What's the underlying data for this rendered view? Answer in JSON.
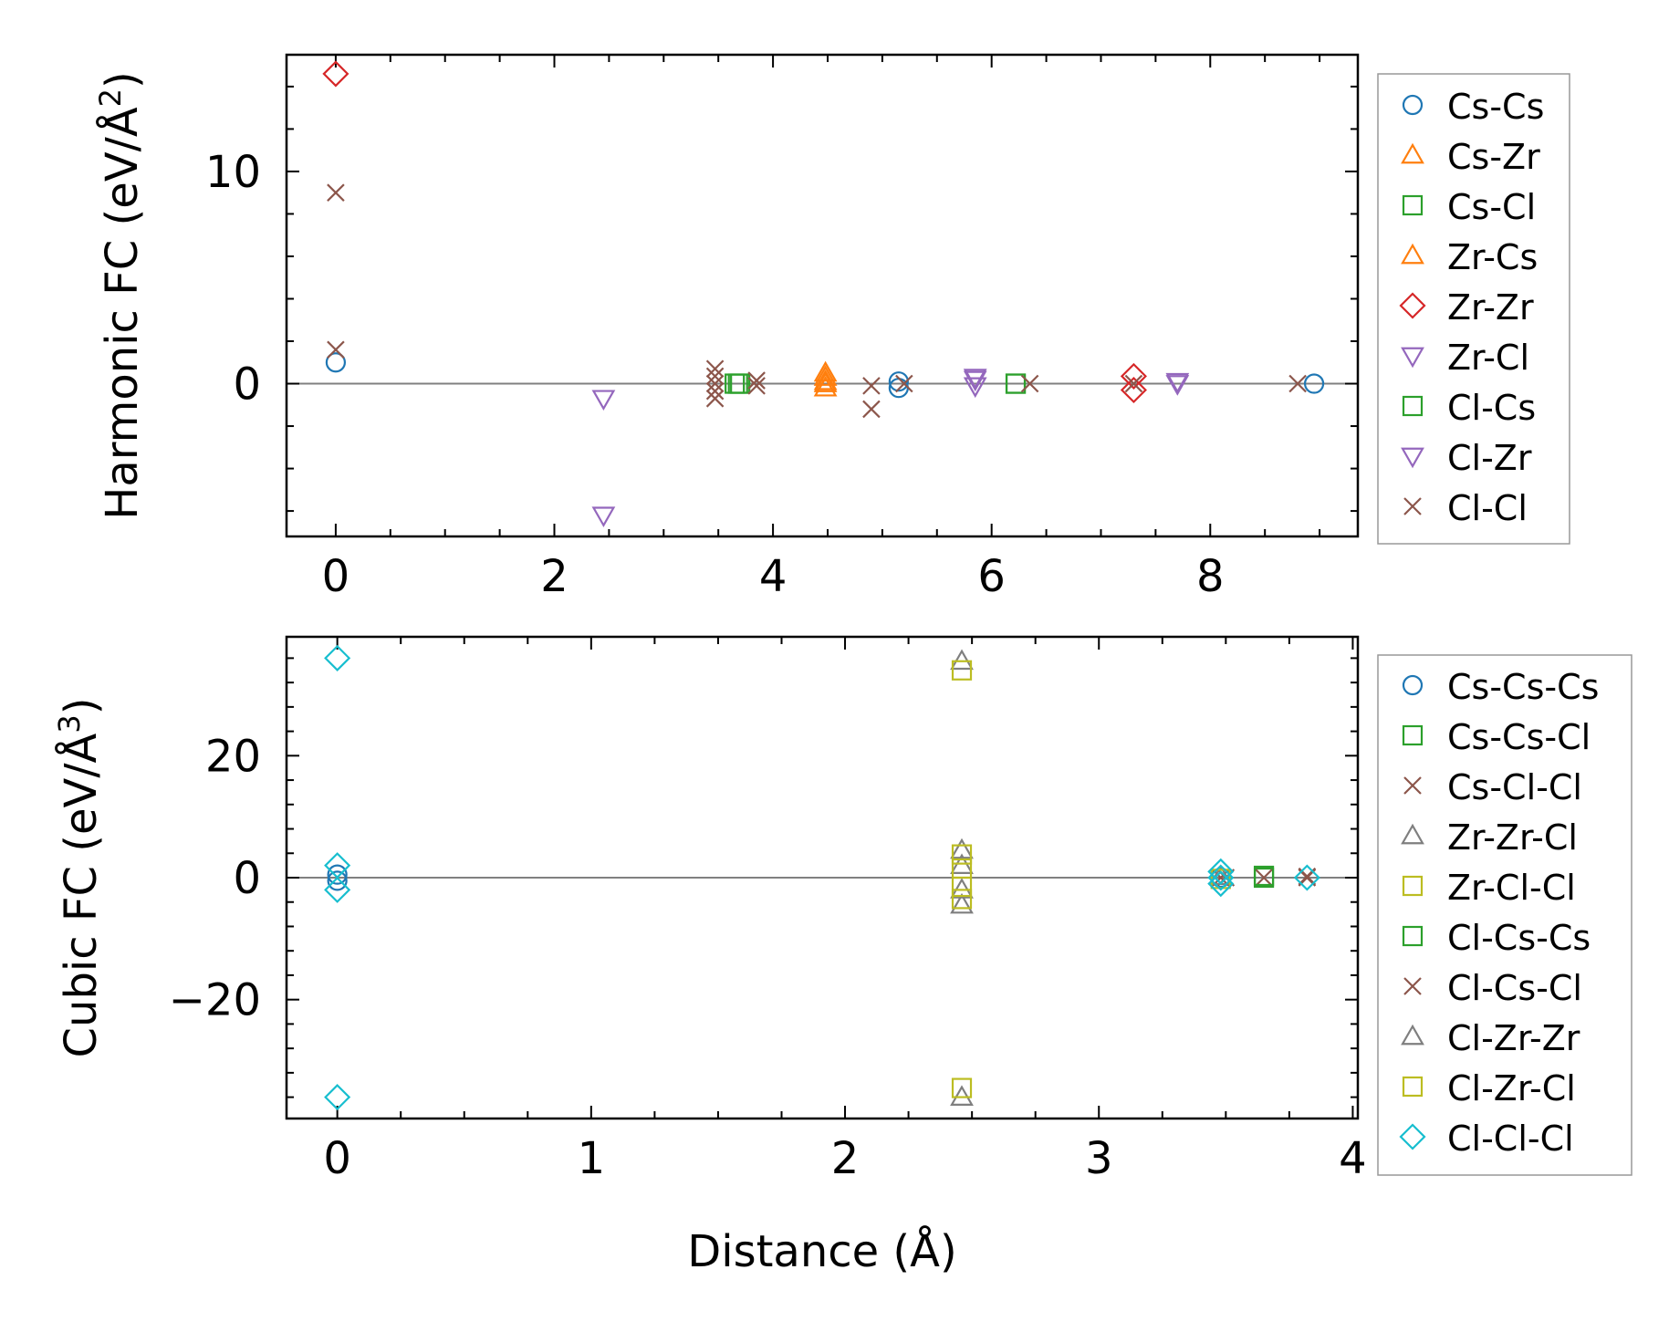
{
  "chart_data": [
    {
      "type": "scatter",
      "title": "",
      "ylabel": "Harmonic FC (eV/Å",
      "ylabel_sup": "2",
      "ylabel_end": ")",
      "xlabel": "",
      "xlim": [
        -0.45,
        9.35
      ],
      "ylim": [
        -7.2,
        15.5
      ],
      "xticks": [
        0,
        2,
        4,
        6,
        8
      ],
      "xtick_labels": [
        "0",
        "2",
        "4",
        "6",
        "8"
      ],
      "yticks": [
        0,
        10
      ],
      "ytick_labels": [
        "0",
        "10"
      ],
      "zero_line": true,
      "legend_position": "right",
      "series": [
        {
          "name": "Cs-Cs",
          "marker": "circle",
          "color": "#1f77b4",
          "points": [
            [
              0,
              1.0
            ],
            [
              5.15,
              0.1
            ],
            [
              5.15,
              -0.2
            ],
            [
              8.95,
              0.0
            ]
          ]
        },
        {
          "name": "Cs-Zr",
          "marker": "triangle-up",
          "color": "#ff7f0e",
          "points": [
            [
              4.48,
              0.3
            ],
            [
              4.48,
              -0.2
            ],
            [
              4.48,
              0.0
            ]
          ]
        },
        {
          "name": "Cs-Cl",
          "marker": "square",
          "color": "#2ca02c",
          "points": [
            [
              3.65,
              0.0
            ],
            [
              3.7,
              0.0
            ],
            [
              6.22,
              0.0
            ]
          ]
        },
        {
          "name": "Zr-Cs",
          "marker": "triangle-up",
          "color": "#ff7f0e",
          "points": [
            [
              4.48,
              0.5
            ],
            [
              4.48,
              0.1
            ]
          ]
        },
        {
          "name": "Zr-Zr",
          "marker": "diamond",
          "color": "#d62728",
          "points": [
            [
              0,
              14.6
            ],
            [
              7.3,
              0.35
            ],
            [
              7.3,
              -0.3
            ]
          ]
        },
        {
          "name": "Zr-Cl",
          "marker": "triangle-down",
          "color": "#9467bd",
          "points": [
            [
              2.45,
              -0.7
            ],
            [
              2.45,
              -6.2
            ],
            [
              5.85,
              0.2
            ],
            [
              5.85,
              -0.1
            ],
            [
              7.7,
              0.0
            ]
          ]
        },
        {
          "name": "Cl-Cs",
          "marker": "square",
          "color": "#2ca02c",
          "points": [
            [
              3.68,
              0.0
            ],
            [
              6.22,
              0.0
            ]
          ]
        },
        {
          "name": "Cl-Zr",
          "marker": "triangle-down",
          "color": "#9467bd",
          "points": [
            [
              5.85,
              0.3
            ],
            [
              7.7,
              0.1
            ]
          ]
        },
        {
          "name": "Cl-Cl",
          "marker": "x",
          "color": "#8c564b",
          "points": [
            [
              0,
              9.0
            ],
            [
              0,
              1.6
            ],
            [
              3.47,
              0.7
            ],
            [
              3.47,
              0.35
            ],
            [
              3.47,
              0.0
            ],
            [
              3.47,
              -0.35
            ],
            [
              3.47,
              -0.7
            ],
            [
              3.85,
              0.15
            ],
            [
              3.85,
              -0.1
            ],
            [
              4.9,
              -0.1
            ],
            [
              4.9,
              -1.2
            ],
            [
              5.2,
              0.0
            ],
            [
              6.35,
              0.0
            ],
            [
              7.3,
              0.0
            ],
            [
              8.8,
              0.0
            ]
          ]
        }
      ]
    },
    {
      "type": "scatter",
      "title": "",
      "ylabel": "Cubic FC (eV/Å",
      "ylabel_sup": "3",
      "ylabel_end": ")",
      "xlabel": "Distance (Å)",
      "xlim": [
        -0.2,
        4.02
      ],
      "ylim": [
        -39.5,
        39.5
      ],
      "xticks": [
        0,
        1,
        2,
        3,
        4
      ],
      "xtick_labels": [
        "0",
        "1",
        "2",
        "3",
        "4"
      ],
      "yticks": [
        -20,
        0,
        20
      ],
      "ytick_labels": [
        "−20",
        "0",
        "20"
      ],
      "zero_line": true,
      "legend_position": "right",
      "series": [
        {
          "name": "Cs-Cs-Cs",
          "marker": "circle",
          "color": "#1f77b4",
          "points": [
            [
              0,
              0.5
            ],
            [
              0,
              -0.5
            ],
            [
              3.48,
              0.0
            ]
          ]
        },
        {
          "name": "Cs-Cs-Cl",
          "marker": "square",
          "color": "#2ca02c",
          "points": [
            [
              3.65,
              0.0
            ]
          ]
        },
        {
          "name": "Cs-Cl-Cl",
          "marker": "x",
          "color": "#8c564b",
          "points": [
            [
              3.48,
              0.0
            ],
            [
              3.65,
              0.0
            ],
            [
              3.82,
              0.0
            ]
          ]
        },
        {
          "name": "Zr-Zr-Cl",
          "marker": "triangle-up",
          "color": "#7f7f7f",
          "points": [
            [
              2.46,
              35.5
            ],
            [
              2.46,
              -36.0
            ],
            [
              2.46,
              4.5
            ],
            [
              2.46,
              2.0
            ],
            [
              2.46,
              -2.0
            ],
            [
              2.46,
              -4.5
            ]
          ]
        },
        {
          "name": "Zr-Cl-Cl",
          "marker": "square",
          "color": "#bcbd22",
          "points": [
            [
              2.46,
              34.0
            ],
            [
              2.46,
              -34.5
            ],
            [
              2.46,
              3.8
            ],
            [
              2.46,
              1.5
            ],
            [
              2.46,
              -1.5
            ],
            [
              2.46,
              -3.5
            ]
          ]
        },
        {
          "name": "Cl-Cs-Cs",
          "marker": "square",
          "color": "#2ca02c",
          "points": [
            [
              3.65,
              0.3
            ]
          ]
        },
        {
          "name": "Cl-Cs-Cl",
          "marker": "x",
          "color": "#8c564b",
          "points": [
            [
              3.5,
              0.0
            ],
            [
              3.82,
              0.2
            ]
          ]
        },
        {
          "name": "Cl-Zr-Zr",
          "marker": "triangle-up",
          "color": "#7f7f7f",
          "points": [
            [
              3.48,
              0.2
            ]
          ]
        },
        {
          "name": "Cl-Zr-Cl",
          "marker": "square",
          "color": "#bcbd22",
          "points": [
            [
              3.48,
              -0.2
            ]
          ]
        },
        {
          "name": "Cl-Cl-Cl",
          "marker": "diamond",
          "color": "#17becf",
          "points": [
            [
              0,
              36.0
            ],
            [
              0,
              -36.0
            ],
            [
              0,
              2.0
            ],
            [
              0,
              -2.0
            ],
            [
              3.48,
              1.0
            ],
            [
              3.48,
              0.0
            ],
            [
              3.48,
              -1.0
            ],
            [
              3.82,
              0.0
            ]
          ]
        }
      ]
    }
  ]
}
